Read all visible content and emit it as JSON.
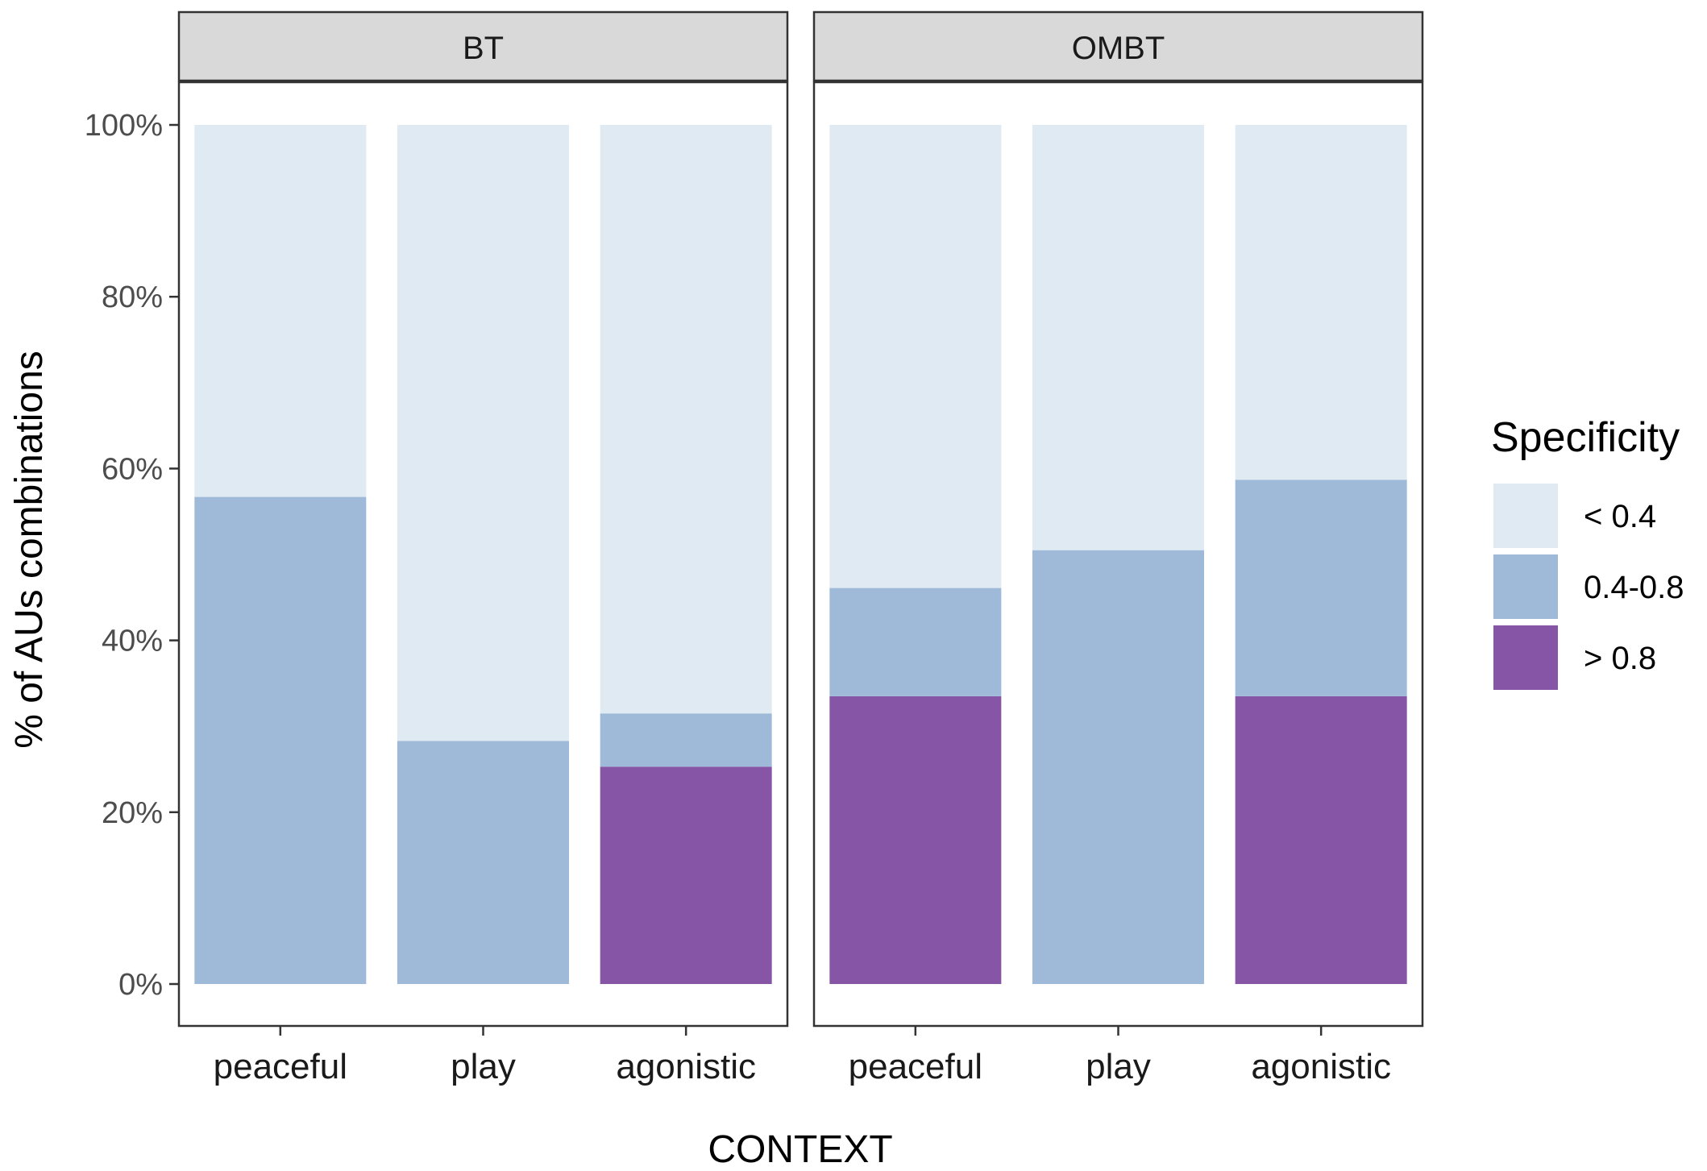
{
  "chart_data": {
    "type": "bar",
    "stacked": true,
    "percent": true,
    "xlabel": "CONTEXT",
    "ylabel": "% of AUs combinations",
    "ylim": [
      0,
      100
    ],
    "yticks": [
      "0%",
      "20%",
      "40%",
      "60%",
      "80%",
      "100%"
    ],
    "yticks_values": [
      0,
      20,
      40,
      60,
      80,
      100
    ],
    "grid": false,
    "legend": {
      "title": "Specificity",
      "position": "right",
      "entries": [
        "< 0.4",
        "0.4-0.8",
        "> 0.8"
      ]
    },
    "colors": {
      "< 0.4": "#dfeaf3",
      "0.4-0.8": "#9fbad8",
      "> 0.8": "#8755a6"
    },
    "categories": [
      "peaceful",
      "play",
      "agonistic"
    ],
    "panels": [
      {
        "title": "BT",
        "series": [
          {
            "name": "> 0.8",
            "values": [
              0,
              0,
              25.3
            ]
          },
          {
            "name": "0.4-0.8",
            "values": [
              56.7,
              28.3,
              6.2
            ]
          },
          {
            "name": "< 0.4",
            "values": [
              43.3,
              71.7,
              68.5
            ]
          }
        ]
      },
      {
        "title": "OMBT",
        "series": [
          {
            "name": "> 0.8",
            "values": [
              33.5,
              0,
              33.5
            ]
          },
          {
            "name": "0.4-0.8",
            "values": [
              12.6,
              50.5,
              25.2
            ]
          },
          {
            "name": "< 0.4",
            "values": [
              53.9,
              49.5,
              41.3
            ]
          }
        ]
      }
    ]
  }
}
